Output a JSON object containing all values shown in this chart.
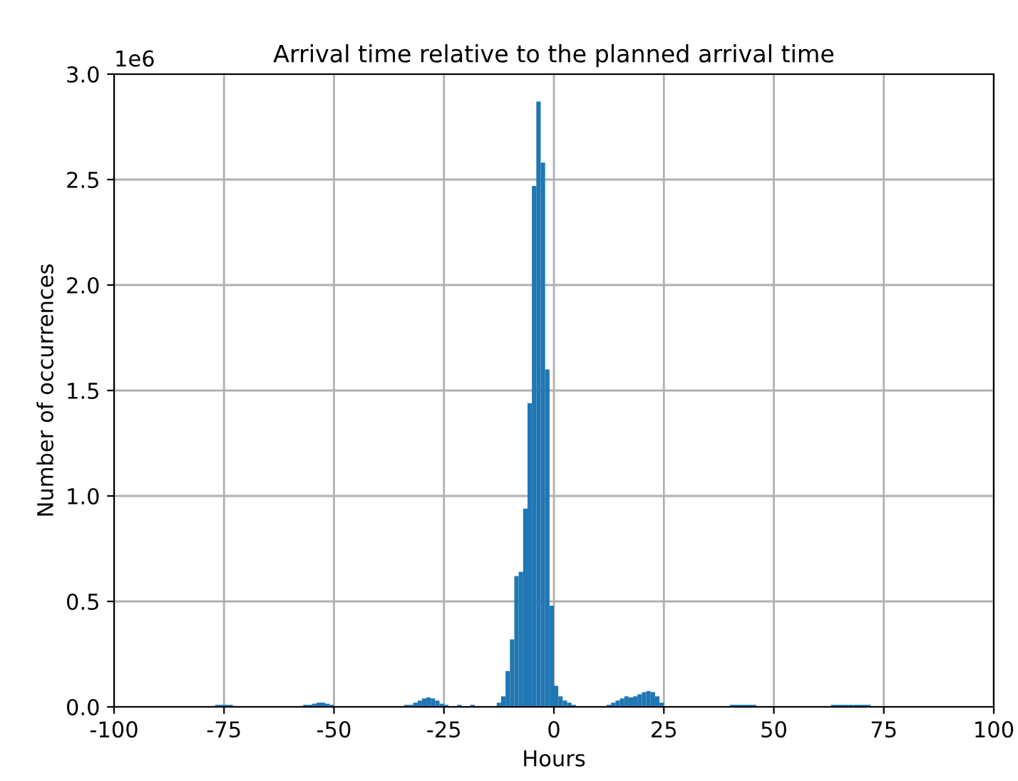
{
  "chart_data": {
    "type": "histogram",
    "title": "Arrival time relative to the planned arrival time",
    "xlabel": "Hours",
    "ylabel": "Number of occurrences",
    "annotations": [
      "1e6"
    ],
    "color": "#1f77b4",
    "bins": [
      -77,
      -76,
      -75,
      -74,
      -73,
      -57,
      -56,
      -55,
      -54,
      -53,
      -52,
      -51,
      -50,
      -34,
      -33,
      -32,
      -31,
      -30,
      -29,
      -28,
      -27,
      -26,
      -25,
      -24,
      -22,
      -21,
      -19,
      -18,
      -13,
      -12,
      -11,
      -10,
      -9,
      -8,
      -7,
      -6,
      -5,
      -4,
      -3,
      -2,
      -1,
      0,
      1,
      2,
      3,
      4,
      5,
      12,
      13,
      14,
      15,
      16,
      17,
      18,
      19,
      20,
      21,
      22,
      23,
      24,
      25,
      40,
      41,
      42,
      43,
      44,
      45,
      46,
      63,
      64,
      65,
      66,
      67,
      68,
      69,
      70,
      71,
      72
    ],
    "values": [
      0.01,
      0.01,
      0.01,
      0.01,
      0,
      0.01,
      0.01,
      0.015,
      0.02,
      0.02,
      0.015,
      0.01,
      0,
      0.01,
      0.01,
      0.02,
      0.03,
      0.04,
      0.045,
      0.04,
      0.03,
      0.015,
      0.01,
      0,
      0.01,
      0,
      0.01,
      0,
      0.02,
      0.05,
      0.17,
      0.32,
      0.62,
      0.64,
      0.94,
      1.44,
      2.47,
      2.87,
      2.58,
      1.6,
      0.48,
      0.1,
      0.05,
      0.03,
      0.02,
      0.01,
      0,
      0.01,
      0.02,
      0.03,
      0.04,
      0.05,
      0.045,
      0.05,
      0.06,
      0.07,
      0.075,
      0.07,
      0.05,
      0.02,
      0,
      0.01,
      0.01,
      0.01,
      0.01,
      0.01,
      0.01,
      0,
      0.01,
      0.01,
      0.01,
      0.01,
      0.01,
      0.01,
      0.01,
      0.01,
      0.01
    ],
    "xlim": [
      -100,
      100
    ],
    "xticks": [
      -100,
      -75,
      -50,
      -25,
      0,
      25,
      50,
      75,
      100
    ],
    "ylim": [
      0,
      3.0
    ],
    "yticks": [
      {
        "value": 0,
        "label": "0.0"
      },
      0.5,
      {
        "value": 1,
        "label": "1.0"
      },
      1.5,
      {
        "value": 2,
        "label": "2.0"
      },
      2.5,
      {
        "value": 3,
        "label": "3.0"
      }
    ],
    "grid": true
  }
}
